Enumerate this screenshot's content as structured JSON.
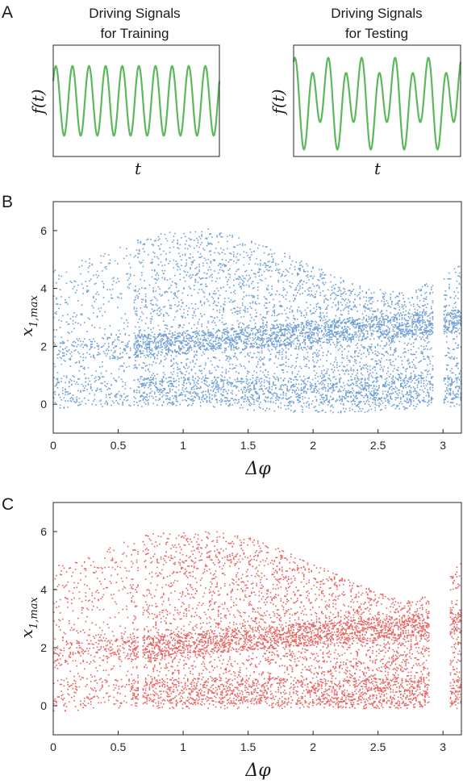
{
  "panel_labels": {
    "a": "A",
    "b": "B",
    "c": "C"
  },
  "colors": {
    "sine": "#5cb85c",
    "blue": "#6f9fd4",
    "red": "#e8625f",
    "axis": "#262626"
  },
  "chart_data": [
    {
      "id": "A-left",
      "type": "line",
      "title_lines": [
        "Driving Signals",
        "for Training"
      ],
      "xlabel": "t",
      "ylabel": "f(t)",
      "ylim": [
        -1.6,
        1.6
      ],
      "series": [
        {
          "x_end": 12,
          "amplitude": 1.0,
          "cycles": 10,
          "phase": 0.6,
          "second_amplitude": 0,
          "second_phase": 0
        }
      ]
    },
    {
      "id": "A-right",
      "type": "line",
      "title_lines": [
        "Driving Signals",
        "for Testing"
      ],
      "xlabel": "t",
      "ylabel": "f(t)",
      "ylim": [
        -1.6,
        1.6
      ],
      "series": [
        {
          "x_end": 12,
          "amplitude": 1.0,
          "cycles": 10,
          "phase": 0.9,
          "second_amplitude": 0.45,
          "second_phase": 2.3
        }
      ]
    },
    {
      "id": "B",
      "type": "scatter",
      "xlabel": "Δφ",
      "ylabel": "x1,max",
      "xlim": [
        0,
        3.1416
      ],
      "ylim": [
        -1,
        7
      ],
      "xticks": [
        "0",
        "0.5",
        "1",
        "1.5",
        "2",
        "2.5",
        "3"
      ],
      "xtick_values": [
        0,
        0.5,
        1,
        1.5,
        2,
        2.5,
        3
      ],
      "yticks": [
        "0",
        "2",
        "4",
        "6"
      ],
      "ytick_values": [
        0,
        2,
        4,
        6
      ],
      "gaps": [
        [
          0.6,
          0.62
        ],
        [
          2.93,
          3.0
        ]
      ],
      "upper_envelope": [
        [
          0,
          4.8
        ],
        [
          0.3,
          5.1
        ],
        [
          0.6,
          5.6
        ],
        [
          0.9,
          6.0
        ],
        [
          1.2,
          6.05
        ],
        [
          1.5,
          5.7
        ],
        [
          1.8,
          5.2
        ],
        [
          2.1,
          4.6
        ],
        [
          2.4,
          4.0
        ],
        [
          2.7,
          3.9
        ],
        [
          2.9,
          4.2
        ],
        [
          3.1416,
          4.9
        ]
      ],
      "lower_envelope": [
        [
          0,
          -0.15
        ],
        [
          0.5,
          -0.1
        ],
        [
          1.0,
          -0.05
        ],
        [
          1.5,
          -0.2
        ],
        [
          2.0,
          -0.3
        ],
        [
          2.5,
          -0.3
        ],
        [
          3.0,
          -0.1
        ],
        [
          3.1416,
          -0.1
        ]
      ]
    },
    {
      "id": "C",
      "type": "scatter",
      "xlabel": "Δφ",
      "ylabel": "x1,max",
      "xlim": [
        0,
        3.1416
      ],
      "ylim": [
        -1,
        7
      ],
      "xticks": [
        "0",
        "0.5",
        "1",
        "1.5",
        "2",
        "2.5",
        "3"
      ],
      "xtick_values": [
        0,
        0.5,
        1,
        1.5,
        2,
        2.5,
        3
      ],
      "yticks": [
        "0",
        "2",
        "4",
        "6"
      ],
      "ytick_values": [
        0,
        2,
        4,
        6
      ],
      "gaps": [
        [
          0.66,
          0.69
        ],
        [
          2.9,
          3.05
        ]
      ],
      "upper_envelope": [
        [
          0,
          4.8
        ],
        [
          0.3,
          5.2
        ],
        [
          0.7,
          5.9
        ],
        [
          1.0,
          6.0
        ],
        [
          1.3,
          6.0
        ],
        [
          1.6,
          5.7
        ],
        [
          1.9,
          5.1
        ],
        [
          2.2,
          4.5
        ],
        [
          2.5,
          3.9
        ],
        [
          2.7,
          3.6
        ],
        [
          2.9,
          3.8
        ],
        [
          3.1416,
          5.0
        ]
      ],
      "lower_envelope": [
        [
          0,
          -0.2
        ],
        [
          0.5,
          -0.1
        ],
        [
          1.0,
          -0.1
        ],
        [
          1.5,
          -0.1
        ],
        [
          2.0,
          -0.1
        ],
        [
          2.5,
          -0.1
        ],
        [
          3.0,
          -0.1
        ],
        [
          3.1416,
          -0.1
        ]
      ]
    }
  ]
}
